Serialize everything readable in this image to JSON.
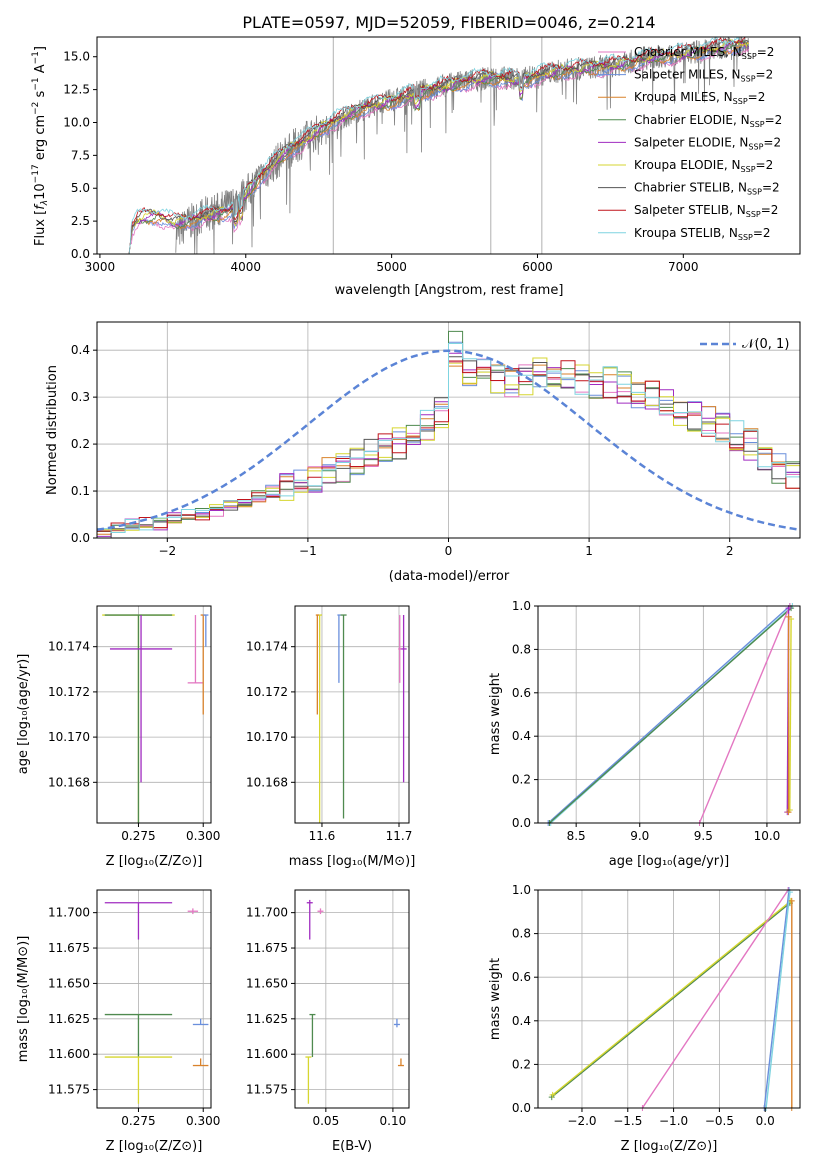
{
  "figure": {
    "title": "PLATE=0597, MJD=52059, FIBERID=0046, z=0.214"
  },
  "legend_entries": [
    {
      "label": "Chabrier MILES, N",
      "sub": "SSP",
      "tail": "=2",
      "color": "#e377c2"
    },
    {
      "label": "Salpeter MILES, N",
      "sub": "SSP",
      "tail": "=2",
      "color": "#6a8fdc"
    },
    {
      "label": "Kroupa MILES, N",
      "sub": "SSP",
      "tail": "=2",
      "color": "#d9822b"
    },
    {
      "label": "Chabrier ELODIE, N",
      "sub": "SSP",
      "tail": "=2",
      "color": "#4f8a4f"
    },
    {
      "label": "Salpeter ELODIE, N",
      "sub": "SSP",
      "tail": "=2",
      "color": "#a02cc0"
    },
    {
      "label": "Kroupa ELODIE, N",
      "sub": "SSP",
      "tail": "=2",
      "color": "#d6d630"
    },
    {
      "label": "Chabrier STELIB, N",
      "sub": "SSP",
      "tail": "=2",
      "color": "#555555"
    },
    {
      "label": "Salpeter STELIB, N",
      "sub": "SSP",
      "tail": "=2",
      "color": "#c0141c"
    },
    {
      "label": "Kroupa STELIB, N",
      "sub": "SSP",
      "tail": "=2",
      "color": "#7fd4e0"
    }
  ],
  "chart_data": [
    {
      "id": "spectrum",
      "type": "line",
      "xlabel": "wavelength [Angstrom, rest frame]",
      "ylabel": "Flux [f_λ 10^-17 erg cm^-2 s^-1 A^-1]",
      "xlim": [
        2980,
        7800
      ],
      "ylim": [
        0,
        16.5
      ],
      "xticks": [
        "3000",
        "4000",
        "5000",
        "6000",
        "7000"
      ],
      "yticks": [
        "0.0",
        "2.5",
        "5.0",
        "7.5",
        "10.0",
        "12.5",
        "15.0"
      ],
      "grid": false,
      "legend_position": "right",
      "data_color": "#808080",
      "data_points": [
        [
          3520,
          1.5
        ],
        [
          3600,
          2.3
        ],
        [
          3700,
          2.9
        ],
        [
          3800,
          3.3
        ],
        [
          3900,
          3.7
        ],
        [
          3950,
          4.2
        ],
        [
          4000,
          4.6
        ],
        [
          4100,
          5.8
        ],
        [
          4200,
          6.9
        ],
        [
          4300,
          7.9
        ],
        [
          4400,
          8.7
        ],
        [
          4500,
          9.3
        ],
        [
          4600,
          10.0
        ],
        [
          4700,
          10.5
        ],
        [
          4800,
          11.0
        ],
        [
          4900,
          11.4
        ],
        [
          5000,
          11.7
        ],
        [
          5100,
          12.0
        ],
        [
          5200,
          12.4
        ],
        [
          5300,
          12.6
        ],
        [
          5400,
          12.9
        ],
        [
          5500,
          13.1
        ],
        [
          5600,
          13.3
        ],
        [
          5700,
          13.4
        ],
        [
          5800,
          13.4
        ],
        [
          5900,
          13.3
        ],
        [
          6000,
          13.6
        ],
        [
          6100,
          13.8
        ],
        [
          6200,
          14.0
        ],
        [
          6300,
          14.1
        ],
        [
          6400,
          14.2
        ],
        [
          6500,
          14.3
        ],
        [
          6600,
          14.5
        ],
        [
          6700,
          14.8
        ],
        [
          6800,
          15.0
        ],
        [
          6900,
          15.1
        ],
        [
          7000,
          15.2
        ],
        [
          7100,
          15.4
        ],
        [
          7200,
          15.6
        ],
        [
          7300,
          15.8
        ],
        [
          7400,
          15.9
        ]
      ],
      "model_points": [
        [
          3200,
          0.0
        ],
        [
          3220,
          2.0
        ],
        [
          3260,
          2.6
        ],
        [
          3300,
          2.8
        ],
        [
          3400,
          2.9
        ],
        [
          3500,
          2.4
        ],
        [
          3600,
          2.5
        ],
        [
          3700,
          2.8
        ],
        [
          3800,
          3.0
        ],
        [
          3900,
          3.3
        ],
        [
          3950,
          3.8
        ],
        [
          4000,
          4.5
        ],
        [
          4100,
          5.9
        ],
        [
          4200,
          7.0
        ],
        [
          4300,
          8.0
        ],
        [
          4400,
          8.6
        ],
        [
          4500,
          9.4
        ],
        [
          4600,
          10.1
        ],
        [
          4700,
          10.6
        ],
        [
          4800,
          11.1
        ],
        [
          4900,
          11.4
        ],
        [
          5000,
          11.6
        ],
        [
          5100,
          12.0
        ],
        [
          5200,
          12.3
        ],
        [
          5300,
          12.6
        ],
        [
          5400,
          12.8
        ],
        [
          5500,
          13.1
        ],
        [
          5600,
          13.3
        ],
        [
          5700,
          13.4
        ],
        [
          5800,
          13.3
        ],
        [
          5900,
          13.2
        ],
        [
          6000,
          13.6
        ],
        [
          6100,
          13.8
        ],
        [
          6200,
          14.0
        ],
        [
          6300,
          14.1
        ],
        [
          6400,
          14.2
        ],
        [
          6500,
          14.3
        ],
        [
          6600,
          14.5
        ],
        [
          6700,
          14.7
        ],
        [
          6800,
          15.0
        ],
        [
          6900,
          15.1
        ],
        [
          7000,
          15.2
        ],
        [
          7100,
          15.4
        ],
        [
          7200,
          15.6
        ],
        [
          7300,
          15.8
        ],
        [
          7400,
          16.0
        ]
      ],
      "vertical_lines": [
        4600,
        5680,
        6030
      ]
    },
    {
      "id": "residuals",
      "type": "bar",
      "xlabel": "(data-model)/error",
      "ylabel": "Normed distribution",
      "xlim": [
        -2.5,
        2.5
      ],
      "ylim": [
        0,
        0.46
      ],
      "xticks": [
        "−2",
        "−1",
        "0",
        "1",
        "2"
      ],
      "yticks": [
        "0.0",
        "0.1",
        "0.2",
        "0.3",
        "0.4"
      ],
      "grid": true,
      "legend_position": "top-right",
      "reference_label": "𝒩(0, 1)",
      "reference_color": "#5b84d6",
      "bin_width": 0.1,
      "bin_start": -2.5,
      "hist_mean": [
        0.01,
        0.02,
        0.03,
        0.03,
        0.03,
        0.04,
        0.05,
        0.05,
        0.06,
        0.07,
        0.08,
        0.09,
        0.1,
        0.11,
        0.12,
        0.13,
        0.14,
        0.15,
        0.17,
        0.18,
        0.19,
        0.2,
        0.22,
        0.24,
        0.27,
        0.4,
        0.35,
        0.36,
        0.34,
        0.33,
        0.34,
        0.35,
        0.34,
        0.35,
        0.34,
        0.33,
        0.33,
        0.32,
        0.31,
        0.3,
        0.29,
        0.27,
        0.26,
        0.25,
        0.24,
        0.22,
        0.2,
        0.17,
        0.15,
        0.13
      ],
      "hist_spread": 0.035
    },
    {
      "id": "age-vs-Z",
      "type": "scatter",
      "xlabel": "Z [log₁₀(Z/Z⊙)]",
      "ylabel": "age  [log₁₀(age/yr)]",
      "xlim": [
        0.259,
        0.303
      ],
      "ylim": [
        10.1662,
        10.1758
      ],
      "xticks": [
        "0.275",
        "0.300"
      ],
      "yticks": [
        "10.168",
        "10.170",
        "10.172",
        "10.174"
      ],
      "grid": true
    },
    {
      "id": "age-vs-mass",
      "type": "scatter",
      "xlabel": "mass [log₁₀(M/M⊙)]",
      "ylabel": "",
      "xlim": [
        11.565,
        11.713
      ],
      "ylim": [
        10.1662,
        10.1758
      ],
      "xticks": [
        "11.6",
        "11.7"
      ],
      "yticks": [
        "10.168",
        "10.170",
        "10.172",
        "10.174"
      ],
      "grid": true
    },
    {
      "id": "weight-vs-age",
      "type": "line",
      "xlabel": "age  [log₁₀(age/yr)]",
      "ylabel": "mass weight",
      "xlim": [
        8.2,
        10.26
      ],
      "ylim": [
        0,
        1
      ],
      "xticks": [
        "8.5",
        "9.0",
        "9.5",
        "10.0"
      ],
      "yticks": [
        "0.0",
        "0.2",
        "0.4",
        "0.6",
        "0.8",
        "1.0"
      ],
      "grid": true
    },
    {
      "id": "mass-vs-Z",
      "type": "scatter",
      "xlabel": "Z [log₁₀(Z/Z⊙)]",
      "ylabel": "mass [log₁₀(M/M⊙)]",
      "xlim": [
        0.259,
        0.303
      ],
      "ylim": [
        11.562,
        11.716
      ],
      "xticks": [
        "0.275",
        "0.300"
      ],
      "yticks": [
        "11.575",
        "11.600",
        "11.625",
        "11.650",
        "11.675",
        "11.700"
      ],
      "grid": true
    },
    {
      "id": "mass-vs-ebv",
      "type": "scatter",
      "xlabel": "E(B-V)",
      "ylabel": "",
      "xlim": [
        0.027,
        0.112
      ],
      "ylim": [
        11.562,
        11.716
      ],
      "xticks": [
        "0.05",
        "0.10"
      ],
      "yticks": [
        "11.575",
        "11.600",
        "11.625",
        "11.650",
        "11.675",
        "11.700"
      ],
      "grid": true
    },
    {
      "id": "weight-vs-Z",
      "type": "line",
      "xlabel": "Z [log₁₀(Z/Z⊙)]",
      "ylabel": "mass weight",
      "xlim": [
        -2.48,
        0.38
      ],
      "ylim": [
        0,
        1
      ],
      "xticks": [
        "−2.0",
        "−1.5",
        "−1.0",
        "−0.5",
        "0.0"
      ],
      "yticks": [
        "0.0",
        "0.2",
        "0.4",
        "0.6",
        "0.8",
        "1.0"
      ],
      "grid": true
    }
  ],
  "fit_results": {
    "age_Z": [
      {
        "c": "#d6d630",
        "x": 0.275,
        "y": 10.1754,
        "xe": 0.014,
        "yl": 10.1662,
        "yh": 10.1754
      },
      {
        "c": "#4f8a4f",
        "x": 0.275,
        "y": 10.1754,
        "xe": 0.013,
        "yl": 10.1662,
        "yh": 10.1754
      },
      {
        "c": "#a02cc0",
        "x": 0.276,
        "y": 10.1739,
        "xe": 0.012,
        "yl": 10.168,
        "yh": 10.1754
      },
      {
        "c": "#e377c2",
        "x": 0.297,
        "y": 10.1724,
        "xe": 0.003,
        "yl": 10.1724,
        "yh": 10.1754
      },
      {
        "c": "#d9822b",
        "x": 0.3,
        "y": 10.1754,
        "xe": 0.001,
        "yl": 10.171,
        "yh": 10.1754
      },
      {
        "c": "#6a8fdc",
        "x": 0.301,
        "y": 10.1754,
        "xe": 0.001,
        "yl": 10.174,
        "yh": 10.1754
      }
    ],
    "age_mass": [
      {
        "c": "#d6d630",
        "x": 11.597,
        "y": 10.1754,
        "xe": 0.003,
        "yl": 10.1662,
        "yh": 10.1754
      },
      {
        "c": "#d9822b",
        "x": 11.594,
        "y": 10.1754,
        "xe": 0.002,
        "yl": 10.171,
        "yh": 10.1754
      },
      {
        "c": "#4f8a4f",
        "x": 11.628,
        "y": 10.1754,
        "xe": 0.004,
        "yl": 10.1664,
        "yh": 10.1754
      },
      {
        "c": "#6a8fdc",
        "x": 11.622,
        "y": 10.1754,
        "xe": 0.002,
        "yl": 10.1724,
        "yh": 10.1754
      },
      {
        "c": "#a02cc0",
        "x": 11.706,
        "y": 10.1739,
        "xe": 0.004,
        "yl": 10.168,
        "yh": 10.1754
      },
      {
        "c": "#e377c2",
        "x": 11.701,
        "y": 10.1739,
        "xe": 0.002,
        "yl": 10.1724,
        "yh": 10.1754
      }
    ],
    "mass_Z": [
      {
        "c": "#a02cc0",
        "x": 0.275,
        "y": 11.707,
        "xe": 0.013,
        "yl": 11.681,
        "yh": 11.707
      },
      {
        "c": "#e377c2",
        "x": 0.296,
        "y": 11.701,
        "xe": 0.002,
        "yl": 11.699,
        "yh": 11.703
      },
      {
        "c": "#4f8a4f",
        "x": 0.275,
        "y": 11.628,
        "xe": 0.013,
        "yl": 11.598,
        "yh": 11.628
      },
      {
        "c": "#d6d630",
        "x": 0.275,
        "y": 11.598,
        "xe": 0.013,
        "yl": 11.565,
        "yh": 11.598
      },
      {
        "c": "#6a8fdc",
        "x": 0.299,
        "y": 11.621,
        "xe": 0.003,
        "yl": 11.621,
        "yh": 11.625
      },
      {
        "c": "#d9822b",
        "x": 0.299,
        "y": 11.592,
        "xe": 0.003,
        "yl": 11.592,
        "yh": 11.597
      }
    ],
    "mass_ebv": [
      {
        "c": "#a02cc0",
        "x": 0.038,
        "y": 11.707,
        "yl": 11.681,
        "yh": 11.709
      },
      {
        "c": "#e377c2",
        "x": 0.046,
        "y": 11.701,
        "yl": 11.699,
        "yh": 11.703
      },
      {
        "c": "#4f8a4f",
        "x": 0.04,
        "y": 11.628,
        "yl": 11.598,
        "yh": 11.628
      },
      {
        "c": "#d6d630",
        "x": 0.037,
        "y": 11.598,
        "yl": 11.565,
        "yh": 11.598
      },
      {
        "c": "#6a8fdc",
        "x": 0.103,
        "y": 11.621,
        "yl": 11.619,
        "yh": 11.625
      },
      {
        "c": "#d9822b",
        "x": 0.106,
        "y": 11.592,
        "yl": 11.592,
        "yh": 11.597
      }
    ],
    "weight_age": [
      {
        "c": "#6a8fdc",
        "pts": [
          [
            8.28,
            0.0
          ],
          [
            10.18,
            1.0
          ]
        ]
      },
      {
        "c": "#7fd4e0",
        "pts": [
          [
            8.3,
            0.0
          ],
          [
            10.2,
            1.0
          ]
        ]
      },
      {
        "c": "#4f8a4f",
        "pts": [
          [
            8.29,
            0.0
          ],
          [
            10.19,
            0.99
          ]
        ]
      },
      {
        "c": "#e377c2",
        "pts": [
          [
            9.47,
            0.0
          ],
          [
            10.18,
            1.0
          ]
        ]
      },
      {
        "c": "#a02cc0",
        "pts": [
          [
            10.16,
            0.05
          ],
          [
            10.17,
            0.99
          ]
        ]
      },
      {
        "c": "#d6d630",
        "pts": [
          [
            10.18,
            0.06
          ],
          [
            10.19,
            0.94
          ]
        ]
      },
      {
        "c": "#d9822b",
        "pts": [
          [
            10.17,
            0.05
          ],
          [
            10.17,
            0.95
          ]
        ]
      }
    ],
    "weight_Z": [
      {
        "c": "#4f8a4f",
        "pts": [
          [
            -2.33,
            0.05
          ],
          [
            0.27,
            0.94
          ]
        ]
      },
      {
        "c": "#d6d630",
        "pts": [
          [
            -2.32,
            0.06
          ],
          [
            0.28,
            0.95
          ]
        ]
      },
      {
        "c": "#e377c2",
        "pts": [
          [
            -1.34,
            0.0
          ],
          [
            0.25,
            1.0
          ]
        ]
      },
      {
        "c": "#6a8fdc",
        "pts": [
          [
            -0.01,
            0.0
          ],
          [
            0.26,
            1.0
          ]
        ]
      },
      {
        "c": "#7fd4e0",
        "pts": [
          [
            0.01,
            0.0
          ],
          [
            0.27,
            0.99
          ]
        ]
      },
      {
        "c": "#d9822b",
        "pts": [
          [
            0.29,
            0.0
          ],
          [
            0.29,
            0.95
          ]
        ]
      }
    ]
  }
}
